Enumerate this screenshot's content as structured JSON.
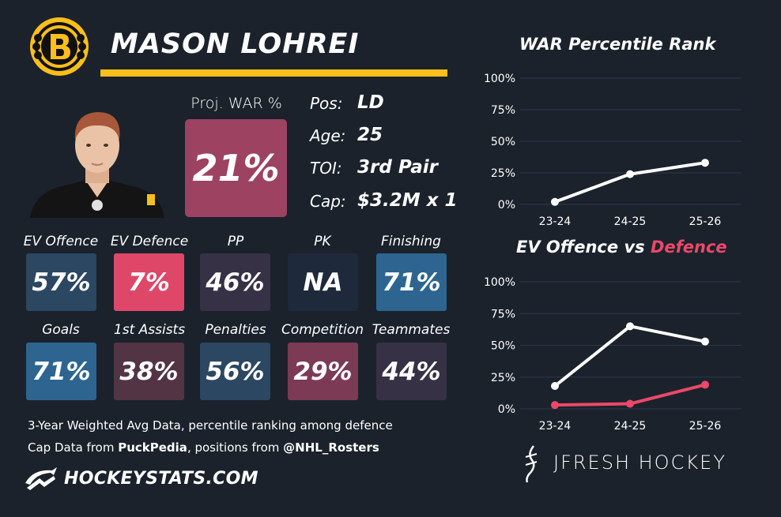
{
  "player": {
    "name": "MASON LOHREI",
    "team_logo": "bruins-logo-icon"
  },
  "proj_war": {
    "label": "Proj. WAR %",
    "value": "21%",
    "color": "#9d4261"
  },
  "info": [
    {
      "label": "Pos:",
      "value": "LD"
    },
    {
      "label": "Age:",
      "value": "25"
    },
    {
      "label": "TOI:",
      "value": "3rd Pair"
    },
    {
      "label": "Cap:",
      "value": "$3.2M x 1"
    }
  ],
  "stats": [
    {
      "label": "EV Offence",
      "value": "57%",
      "color": "#2b4761"
    },
    {
      "label": "EV Defence",
      "value": "7%",
      "color": "#de4768"
    },
    {
      "label": "PP",
      "value": "46%",
      "color": "#363145"
    },
    {
      "label": "PK",
      "value": "NA",
      "color": "#1e2a3b"
    },
    {
      "label": "Finishing",
      "value": "71%",
      "color": "#2d6590"
    },
    {
      "label": "Goals",
      "value": "71%",
      "color": "#2d6590"
    },
    {
      "label": "1st Assists",
      "value": "38%",
      "color": "#523444"
    },
    {
      "label": "Penalties",
      "value": "56%",
      "color": "#2b4761"
    },
    {
      "label": "Competition",
      "value": "29%",
      "color": "#7c3a55"
    },
    {
      "label": "Teammates",
      "value": "44%",
      "color": "#363145"
    }
  ],
  "footnotes": {
    "line1": "3-Year Weighted Avg Data, percentile ranking among defence",
    "line2_prefix": "Cap Data from ",
    "line2_source1": "PuckPedia",
    "line2_middle": ", positions from ",
    "line2_source2": "@NHL_Rosters"
  },
  "branding": {
    "left": "HOCKEYSTATS.COM",
    "right": "JFRESH HOCKEY"
  },
  "colors": {
    "background": "#1b222c",
    "accent_gold": "#fbbf1b",
    "offence_line": "#ffffff",
    "defence_line": "#ec4869"
  },
  "chart_data": [
    {
      "type": "line",
      "title": "WAR Percentile Rank",
      "x": [
        "23-24",
        "24-25",
        "25-26"
      ],
      "series": [
        {
          "values": [
            2,
            24,
            33
          ],
          "color": "#ffffff"
        }
      ],
      "yticks": [
        "0%",
        "25%",
        "50%",
        "75%",
        "100%"
      ],
      "ylim": [
        0,
        100
      ],
      "grid": true
    },
    {
      "type": "line",
      "title_part1": "EV Offence vs ",
      "title_part2": "Defence",
      "x": [
        "23-24",
        "24-25",
        "25-26"
      ],
      "series": [
        {
          "name": "EV Offence",
          "values": [
            18,
            65,
            53
          ],
          "color": "#ffffff"
        },
        {
          "name": "Defence",
          "values": [
            3,
            4,
            19
          ],
          "color": "#ec4869"
        }
      ],
      "yticks": [
        "0%",
        "25%",
        "50%",
        "75%",
        "100%"
      ],
      "ylim": [
        0,
        100
      ],
      "grid": true
    }
  ]
}
